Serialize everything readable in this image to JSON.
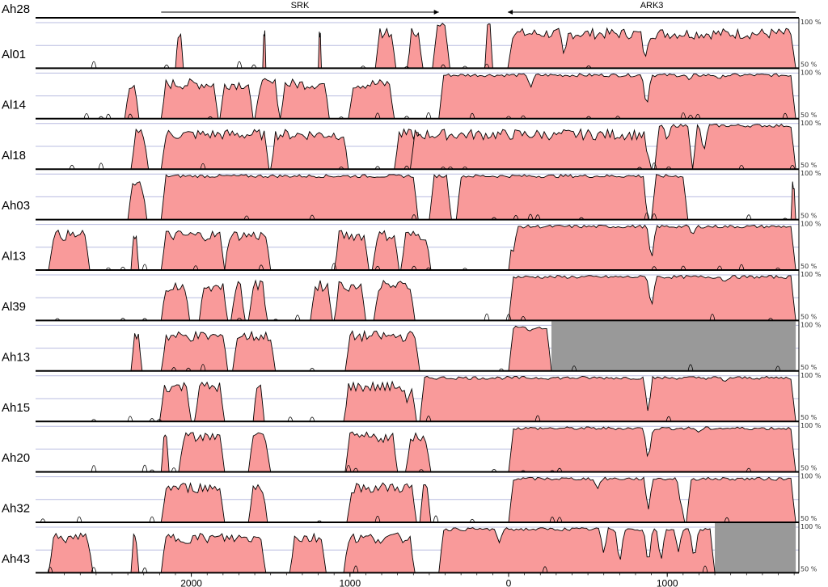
{
  "reference": "Ah28",
  "genes": [
    {
      "name": "SRK",
      "direction": "left"
    },
    {
      "name": "ARK3",
      "direction": "left"
    }
  ],
  "scale": {
    "top_label": "100 %",
    "bottom_label": "50 %"
  },
  "x_ticks": [
    "2000",
    "1000",
    "0",
    "1000"
  ],
  "colors": {
    "conserved_fill": "#f99a9a",
    "gap_fill": "#999999",
    "line": "#000000",
    "grid": "#b8bce0"
  },
  "chart_data": {
    "type": "area",
    "xlabel": "",
    "ylabel": "",
    "ylim": [
      50,
      100
    ],
    "x_axis_ticks": [
      "2000",
      "1000",
      "0",
      "1000"
    ],
    "rows": [
      {
        "name": "Al01",
        "segments": [
          [
            -2100,
            -2050
          ],
          [
            -1550,
            -1530
          ],
          [
            -1200,
            -1180
          ],
          [
            -840,
            -710
          ],
          [
            -640,
            -540
          ],
          [
            -480,
            -370
          ],
          [
            -150,
            -100
          ],
          [
            -5,
            1810
          ]
        ],
        "high": [
          -480,
          -5
        ],
        "dips": [
          [
            350,
            62
          ],
          [
            860,
            58
          ],
          [
            920,
            90
          ],
          [
            1560,
            95
          ],
          [
            1800,
            90
          ]
        ],
        "gaps": []
      },
      {
        "name": "Al14",
        "segments": [
          [
            -2420,
            -2330
          ],
          [
            -2190,
            -1830
          ],
          [
            -1820,
            -1610
          ],
          [
            -1600,
            -1440
          ],
          [
            -1440,
            -1130
          ],
          [
            -1010,
            -720
          ],
          [
            -440,
            1810
          ]
        ],
        "high": [
          -440,
          1810
        ],
        "dips": [
          [
            140,
            84
          ],
          [
            870,
            60
          ],
          [
            1140,
            92
          ],
          [
            1330,
            93
          ]
        ],
        "gaps": []
      },
      {
        "name": "Al18",
        "segments": [
          [
            -2380,
            -2270
          ],
          [
            -2190,
            -1510
          ],
          [
            -1500,
            -1010
          ],
          [
            -720,
            -540
          ],
          [
            -620,
            900
          ],
          [
            920,
            1160
          ],
          [
            1160,
            1810
          ]
        ],
        "high": [
          -540,
          1810
        ],
        "dips": [
          [
            300,
            88
          ],
          [
            880,
            60
          ],
          [
            1000,
            80
          ],
          [
            1230,
            66
          ]
        ],
        "gaps": []
      },
      {
        "name": "Ah03",
        "segments": [
          [
            -2400,
            -2280
          ],
          [
            -2190,
            -570
          ],
          [
            -500,
            -360
          ],
          [
            -330,
            880
          ],
          [
            900,
            1130
          ],
          [
            1780,
            1810
          ]
        ],
        "high": [
          -2190,
          1130
        ],
        "dips": [
          [
            -870,
            97
          ],
          [
            880,
            62
          ]
        ],
        "gaps": []
      },
      {
        "name": "Al13",
        "segments": [
          [
            -2900,
            -2640
          ],
          [
            -2380,
            -2330
          ],
          [
            -2190,
            -1790
          ],
          [
            -1790,
            -1500
          ],
          [
            -1100,
            -880
          ],
          [
            -860,
            -690
          ],
          [
            -680,
            -490
          ],
          [
            0,
            1810
          ]
        ],
        "high": [
          0,
          1810
        ],
        "dips": [
          [
            30,
            70
          ],
          [
            900,
            58
          ],
          [
            1160,
            88
          ]
        ],
        "gaps": []
      },
      {
        "name": "Al39",
        "segments": [
          [
            -2190,
            -2010
          ],
          [
            -1950,
            -1770
          ],
          [
            -1750,
            -1660
          ],
          [
            -1640,
            -1520
          ],
          [
            -1250,
            -1110
          ],
          [
            -1100,
            -900
          ],
          [
            -850,
            -590
          ],
          [
            0,
            1810
          ]
        ],
        "high": [
          0,
          1810
        ],
        "dips": [
          [
            900,
            62
          ],
          [
            1360,
            92
          ]
        ],
        "gaps": []
      },
      {
        "name": "Ah13",
        "segments": [
          [
            -2380,
            -2310
          ],
          [
            -2190,
            -1770
          ],
          [
            -1740,
            -1470
          ],
          [
            -1030,
            -560
          ],
          [
            0,
            270
          ]
        ],
        "high": [
          0,
          270
        ],
        "dips": [
          [
            130,
            93
          ]
        ],
        "gaps": [
          [
            270,
            1810
          ]
        ]
      },
      {
        "name": "Ah15",
        "segments": [
          [
            -2200,
            -2000
          ],
          [
            -1980,
            -1790
          ],
          [
            -1610,
            -1540
          ],
          [
            -1040,
            -580
          ],
          [
            -560,
            1810
          ]
        ],
        "high": [
          -560,
          1810
        ],
        "dips": [
          [
            -640,
            70
          ],
          [
            880,
            58
          ],
          [
            1360,
            93
          ]
        ],
        "gaps": []
      },
      {
        "name": "Ah20",
        "segments": [
          [
            -2190,
            -2140
          ],
          [
            -2080,
            -1790
          ],
          [
            -1640,
            -1500
          ],
          [
            -1030,
            -700
          ],
          [
            -650,
            -490
          ],
          [
            0,
            1810
          ]
        ],
        "high": [
          0,
          1810
        ],
        "dips": [
          [
            880,
            60
          ],
          [
            1200,
            93
          ]
        ],
        "gaps": []
      },
      {
        "name": "Ah32",
        "segments": [
          [
            -2190,
            -1790
          ],
          [
            -1640,
            -1520
          ],
          [
            -1020,
            -580
          ],
          [
            -560,
            -490
          ],
          [
            0,
            1110
          ],
          [
            1120,
            1810
          ]
        ],
        "high": [
          0,
          1810
        ],
        "dips": [
          [
            560,
            86
          ],
          [
            880,
            62
          ],
          [
            1090,
            62
          ]
        ],
        "gaps": []
      },
      {
        "name": "Ah43",
        "segments": [
          [
            -2900,
            -2620
          ],
          [
            -2380,
            -2330
          ],
          [
            -2190,
            -1530
          ],
          [
            -1380,
            -1150
          ],
          [
            -1040,
            -590
          ],
          [
            -440,
            1300
          ]
        ],
        "high": [
          -440,
          1300
        ],
        "dips": [
          [
            -60,
            82
          ],
          [
            600,
            70
          ],
          [
            700,
            58
          ],
          [
            880,
            56
          ],
          [
            960,
            60
          ],
          [
            1070,
            72
          ],
          [
            1170,
            62
          ]
        ],
        "gaps": [
          [
            1300,
            1810
          ]
        ]
      }
    ]
  }
}
